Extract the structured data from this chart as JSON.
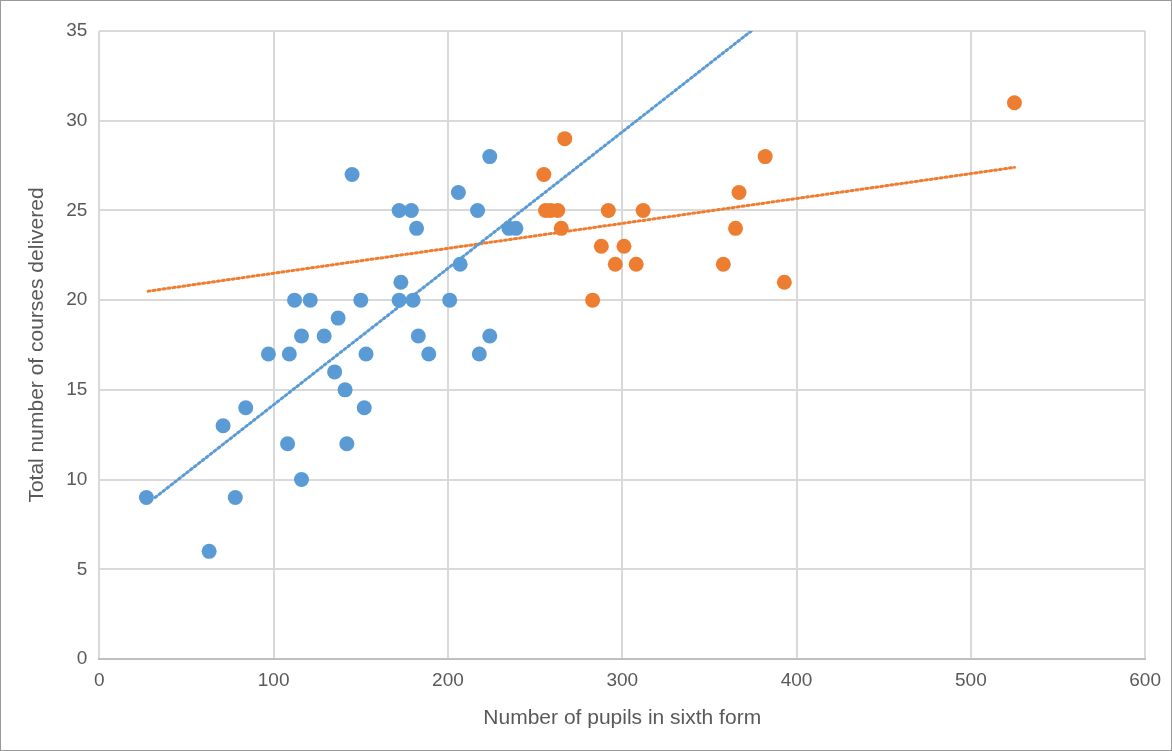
{
  "chart_data": {
    "type": "scatter",
    "xlabel": "Number of pupils in sixth form",
    "ylabel": "Total number of courses delivered",
    "xlim": [
      0,
      600
    ],
    "xticks": [
      0,
      100,
      200,
      300,
      400,
      500,
      600
    ],
    "ylim": [
      0,
      35
    ],
    "yticks": [
      0,
      5,
      10,
      15,
      20,
      25,
      30,
      35
    ],
    "grid": true,
    "legend": false,
    "marker": "circle",
    "series": [
      {
        "color": "#5b9bd5",
        "x": [
          27,
          63,
          71,
          78,
          84,
          97,
          108,
          109,
          112,
          116,
          116,
          121,
          129,
          135,
          137,
          141,
          142,
          145,
          150,
          152,
          153,
          172,
          172,
          173,
          179,
          180,
          182,
          183,
          189,
          201,
          206,
          207,
          217,
          218,
          224,
          224,
          235,
          239
        ],
        "values": [
          9,
          6,
          13,
          9,
          14,
          17,
          12,
          17,
          20,
          10,
          18,
          20,
          18,
          16,
          19,
          15,
          12,
          27,
          20,
          14,
          17,
          25,
          20,
          21,
          25,
          20,
          24,
          18,
          17,
          20,
          26,
          22,
          25,
          17,
          28,
          18,
          24,
          24
        ]
      },
      {
        "color": "#ed7d31",
        "x": [
          255,
          256,
          259,
          263,
          265,
          267,
          283,
          288,
          292,
          296,
          301,
          308,
          312,
          358,
          365,
          367,
          382,
          393,
          525
        ],
        "values": [
          27,
          25,
          25,
          25,
          24,
          29,
          20,
          23,
          25,
          22,
          23,
          22,
          25,
          22,
          24,
          26,
          28,
          21,
          31
        ]
      },
      {
        "type": "line",
        "color": "#5b9bd5",
        "line_style": "dotted",
        "marker": "none",
        "x": [
          32,
          374
        ],
        "values": [
          9,
          35
        ]
      },
      {
        "type": "line",
        "color": "#ed7d31",
        "line_style": "dotted",
        "marker": "none",
        "x": [
          28,
          525
        ],
        "values": [
          20.5,
          27.4
        ]
      }
    ]
  }
}
